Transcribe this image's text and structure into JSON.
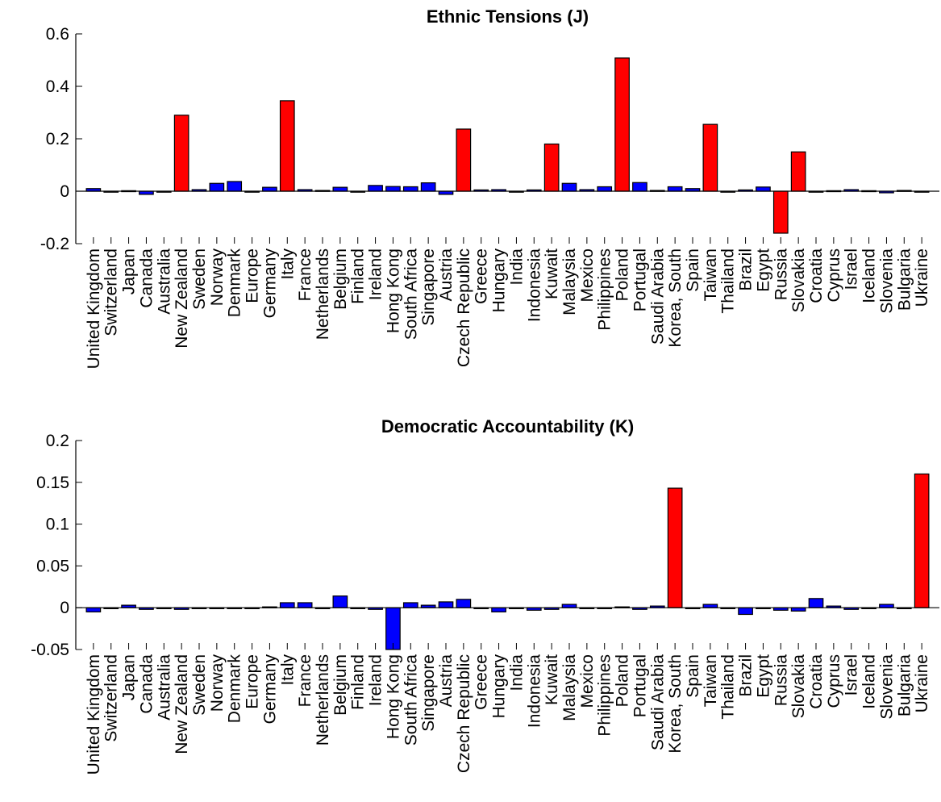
{
  "chart_data": [
    {
      "type": "bar",
      "title": "Ethnic Tensions (J)",
      "xlabel": "",
      "ylabel": "",
      "ylim": [
        -0.2,
        0.6
      ],
      "yticks": [
        -0.2,
        0,
        0.2,
        0.4,
        0.6
      ],
      "ytick_labels": [
        "-0.2",
        "0",
        "0.2",
        "0.4",
        "0.6"
      ],
      "grid": false,
      "colors": {
        "highlight": "#ff0000",
        "normal": "#0000ff",
        "edge": "#000000"
      },
      "categories": [
        "United Kingdom",
        "Switzerland",
        "Japan",
        "Canada",
        "Australia",
        "New Zealand",
        "Sweden",
        "Norway",
        "Denmark",
        "Europe",
        "Germany",
        "Italy",
        "France",
        "Netherlands",
        "Belgium",
        "Finland",
        "Ireland",
        "Hong Kong",
        "South Africa",
        "Singapore",
        "Austria",
        "Czech Republic",
        "Greece",
        "Hungary",
        "India",
        "Indonesia",
        "Kuwait",
        "Malaysia",
        "Mexico",
        "Philippines",
        "Poland",
        "Portugal",
        "Saudi Arabia",
        "Korea, South",
        "Spain",
        "Taiwan",
        "Thailand",
        "Brazil",
        "Egypt",
        "Russia",
        "Slovakia",
        "Croatia",
        "Cyprus",
        "Israel",
        "Iceland",
        "Slovenia",
        "Bulgaria",
        "Ukraine"
      ],
      "values": [
        0.01,
        -0.002,
        0.002,
        -0.012,
        -0.003,
        0.29,
        0.006,
        0.03,
        0.037,
        -0.002,
        0.015,
        0.345,
        0.006,
        0.003,
        0.015,
        -0.002,
        0.022,
        0.018,
        0.017,
        0.032,
        -0.012,
        0.237,
        0.005,
        0.006,
        -0.002,
        0.005,
        0.18,
        0.03,
        0.006,
        0.017,
        0.508,
        0.033,
        0.003,
        0.017,
        0.01,
        0.255,
        -0.002,
        0.005,
        0.016,
        -0.16,
        0.15,
        -0.002,
        0.002,
        0.006,
        0.002,
        -0.006,
        0.003,
        -0.002
      ],
      "highlighted": [
        false,
        false,
        false,
        false,
        false,
        true,
        false,
        false,
        false,
        false,
        false,
        true,
        false,
        false,
        false,
        false,
        false,
        false,
        false,
        false,
        false,
        true,
        false,
        false,
        false,
        false,
        true,
        false,
        false,
        false,
        true,
        false,
        false,
        false,
        false,
        true,
        false,
        false,
        false,
        true,
        true,
        false,
        false,
        false,
        false,
        false,
        false,
        false
      ]
    },
    {
      "type": "bar",
      "title": "Democratic Accountability (K)",
      "xlabel": "",
      "ylabel": "",
      "ylim": [
        -0.05,
        0.2
      ],
      "yticks": [
        -0.05,
        0,
        0.05,
        0.1,
        0.15,
        0.2
      ],
      "ytick_labels": [
        "-0.05",
        "0",
        "0.05",
        "0.1",
        "0.15",
        "0.2"
      ],
      "grid": false,
      "colors": {
        "highlight": "#ff0000",
        "normal": "#0000ff",
        "edge": "#000000"
      },
      "categories": [
        "United Kingdom",
        "Switzerland",
        "Japan",
        "Canada",
        "Australia",
        "New Zealand",
        "Sweden",
        "Norway",
        "Denmark",
        "Europe",
        "Germany",
        "Italy",
        "France",
        "Netherlands",
        "Belgium",
        "Finland",
        "Ireland",
        "Hong Kong",
        "South Africa",
        "Singapore",
        "Austria",
        "Czech Republic",
        "Greece",
        "Hungary",
        "India",
        "Indonesia",
        "Kuwait",
        "Malaysia",
        "Mexico",
        "Philippines",
        "Poland",
        "Portugal",
        "Saudi Arabia",
        "Korea, South",
        "Spain",
        "Taiwan",
        "Thailand",
        "Brazil",
        "Egypt",
        "Russia",
        "Slovakia",
        "Croatia",
        "Cyprus",
        "Israel",
        "Iceland",
        "Slovenia",
        "Bulgaria",
        "Ukraine"
      ],
      "values": [
        -0.005,
        -0.001,
        0.003,
        -0.002,
        -0.001,
        -0.002,
        -0.001,
        -0.001,
        -0.001,
        -0.001,
        0.001,
        0.006,
        0.006,
        -0.001,
        0.014,
        -0.001,
        -0.002,
        -0.05,
        0.006,
        0.003,
        0.007,
        0.01,
        -0.001,
        -0.005,
        -0.001,
        -0.003,
        -0.002,
        0.004,
        -0.001,
        -0.001,
        0.001,
        -0.002,
        0.002,
        0.143,
        -0.001,
        0.004,
        -0.001,
        -0.008,
        -0.001,
        -0.003,
        -0.004,
        0.011,
        0.002,
        -0.002,
        -0.001,
        0.004,
        -0.001,
        0.16
      ],
      "highlighted": [
        false,
        false,
        false,
        false,
        false,
        false,
        false,
        false,
        false,
        false,
        false,
        false,
        false,
        false,
        false,
        false,
        false,
        false,
        false,
        false,
        false,
        false,
        false,
        false,
        false,
        false,
        false,
        false,
        false,
        false,
        false,
        false,
        false,
        true,
        false,
        false,
        false,
        false,
        false,
        false,
        false,
        false,
        false,
        false,
        false,
        false,
        false,
        true
      ]
    }
  ]
}
